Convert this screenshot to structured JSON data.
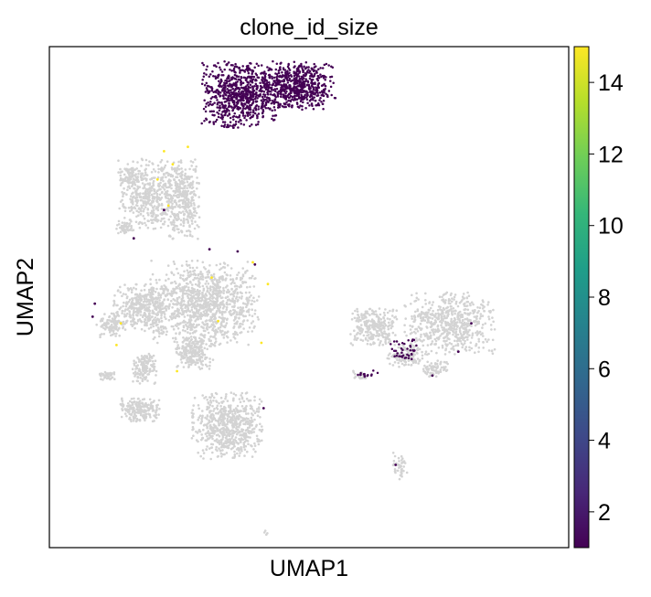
{
  "chart_data": {
    "type": "scatter",
    "title": "clone_id_size",
    "xlabel": "UMAP1",
    "ylabel": "UMAP2",
    "x_ticks_shown": false,
    "y_ticks_shown": false,
    "grid": false,
    "background_color": "#d3d3d3",
    "colorbar": {
      "colormap": "viridis",
      "range": [
        1,
        15
      ],
      "ticks": [
        "2",
        "4",
        "6",
        "8",
        "10",
        "12",
        "14"
      ],
      "tick_values": [
        2,
        4,
        6,
        8,
        10,
        12,
        14
      ],
      "colors": [
        "#440154",
        "#482878",
        "#3e4989",
        "#31688e",
        "#26828e",
        "#1f9e89",
        "#35b779",
        "#6ece58",
        "#b5de2b",
        "#fde725"
      ]
    },
    "series": [
      {
        "group": "background-cells",
        "color": "#d3d3d3",
        "clusters": [
          {
            "cx": -4.2,
            "cy": 6.2,
            "rx": 1.5,
            "ry": 1.5,
            "n": 520
          },
          {
            "cx": -2.8,
            "cy": 6.0,
            "rx": 0.7,
            "ry": 1.7,
            "n": 280
          },
          {
            "cx": -5.2,
            "cy": 7.0,
            "rx": 0.5,
            "ry": 0.4,
            "n": 80
          },
          {
            "cx": -5.5,
            "cy": 4.7,
            "rx": 0.4,
            "ry": 0.3,
            "n": 50
          },
          {
            "cx": -1.8,
            "cy": 1.2,
            "rx": 2.3,
            "ry": 1.8,
            "n": 1100
          },
          {
            "cx": -4.7,
            "cy": 1.0,
            "rx": 1.3,
            "ry": 1.0,
            "n": 380
          },
          {
            "cx": -6.2,
            "cy": 0.2,
            "rx": 0.6,
            "ry": 0.5,
            "n": 100
          },
          {
            "cx": -2.3,
            "cy": -1.1,
            "rx": 0.8,
            "ry": 0.7,
            "n": 220
          },
          {
            "cx": -4.6,
            "cy": -1.8,
            "rx": 0.5,
            "ry": 0.7,
            "n": 140
          },
          {
            "cx": -4.8,
            "cy": -3.7,
            "rx": 0.9,
            "ry": 0.5,
            "n": 200
          },
          {
            "cx": -0.8,
            "cy": -4.4,
            "rx": 1.5,
            "ry": 1.4,
            "n": 650
          },
          {
            "cx": -6.4,
            "cy": -2.1,
            "rx": 0.4,
            "ry": 0.2,
            "n": 40
          },
          {
            "cx": 6.0,
            "cy": 0.1,
            "rx": 1.0,
            "ry": 0.8,
            "n": 260
          },
          {
            "cx": 9.5,
            "cy": 0.3,
            "rx": 1.9,
            "ry": 1.3,
            "n": 600
          },
          {
            "cx": 7.5,
            "cy": -1.2,
            "rx": 0.8,
            "ry": 0.5,
            "n": 120
          },
          {
            "cx": 8.8,
            "cy": -1.8,
            "rx": 0.6,
            "ry": 0.4,
            "n": 70
          },
          {
            "cx": 5.4,
            "cy": -2.1,
            "rx": 0.4,
            "ry": 0.2,
            "n": 30
          },
          {
            "cx": 7.2,
            "cy": -6.3,
            "rx": 0.3,
            "ry": 0.6,
            "n": 40
          },
          {
            "cx": 1.0,
            "cy": -9.3,
            "rx": 0.1,
            "ry": 0.1,
            "n": 4
          }
        ]
      },
      {
        "group": "clone-size-1",
        "color": "#440154",
        "value": 1,
        "clusters": [
          {
            "cx": -0.2,
            "cy": 10.8,
            "rx": 1.6,
            "ry": 1.4,
            "n": 750
          },
          {
            "cx": 2.5,
            "cy": 11.2,
            "rx": 1.6,
            "ry": 1.0,
            "n": 600
          },
          {
            "cx": 7.4,
            "cy": -0.9,
            "rx": 0.6,
            "ry": 0.45,
            "n": 40
          },
          {
            "cx": 5.7,
            "cy": -2.0,
            "rx": 0.5,
            "ry": 0.15,
            "n": 14
          }
        ],
        "points": [
          [
            -3.7,
            5.5
          ],
          [
            -5.1,
            4.2
          ],
          [
            -1.6,
            3.7
          ],
          [
            -0.3,
            3.6
          ],
          [
            0.5,
            3.0
          ],
          [
            -6.9,
            1.2
          ],
          [
            -7.0,
            0.6
          ],
          [
            0.9,
            -3.6
          ],
          [
            8.7,
            -2.1
          ],
          [
            9.9,
            -1.0
          ],
          [
            10.5,
            0.3
          ],
          [
            7.0,
            -6.2
          ]
        ]
      },
      {
        "group": "clone-size-15",
        "color": "#fde725",
        "value": 15,
        "points": [
          [
            -3.7,
            8.2
          ],
          [
            -3.3,
            7.6
          ],
          [
            -4.0,
            6.9
          ],
          [
            -2.6,
            8.4
          ],
          [
            -3.5,
            5.7
          ],
          [
            -1.5,
            2.4
          ],
          [
            0.4,
            3.1
          ],
          [
            1.1,
            2.1
          ],
          [
            -5.7,
            0.3
          ],
          [
            -5.9,
            -0.7
          ],
          [
            -1.2,
            0.4
          ],
          [
            0.8,
            -0.6
          ],
          [
            -3.1,
            -1.9
          ]
        ]
      }
    ],
    "xlim": [
      -9.0,
      15.0
    ],
    "ylim": [
      -10.0,
      13.0
    ]
  }
}
